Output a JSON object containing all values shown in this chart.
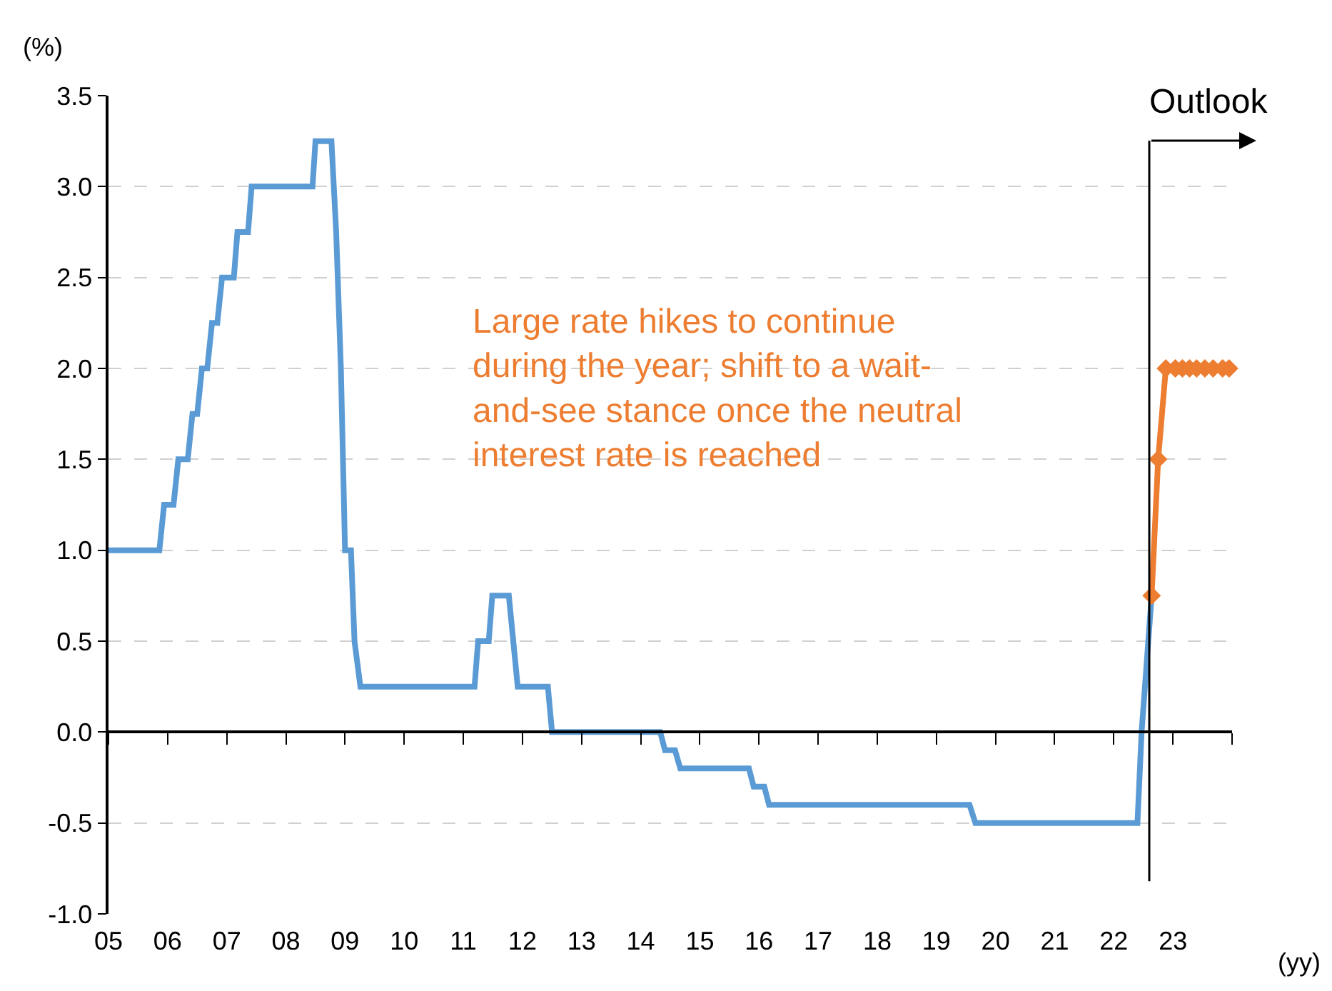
{
  "chart_data": {
    "type": "line",
    "xlabel": "(yy)",
    "ylabel": "(%)",
    "xlim": [
      2005,
      2024
    ],
    "xticks": [
      {
        "value": 2005,
        "label": "05"
      },
      {
        "value": 2006,
        "label": "06"
      },
      {
        "value": 2007,
        "label": "07"
      },
      {
        "value": 2008,
        "label": "08"
      },
      {
        "value": 2009,
        "label": "09"
      },
      {
        "value": 2010,
        "label": "10"
      },
      {
        "value": 2011,
        "label": "11"
      },
      {
        "value": 2012,
        "label": "12"
      },
      {
        "value": 2013,
        "label": "13"
      },
      {
        "value": 2014,
        "label": "14"
      },
      {
        "value": 2015,
        "label": "15"
      },
      {
        "value": 2016,
        "label": "16"
      },
      {
        "value": 2017,
        "label": "17"
      },
      {
        "value": 2018,
        "label": "18"
      },
      {
        "value": 2019,
        "label": "19"
      },
      {
        "value": 2020,
        "label": "20"
      },
      {
        "value": 2021,
        "label": "21"
      },
      {
        "value": 2022,
        "label": "22"
      },
      {
        "value": 2023,
        "label": "23"
      },
      {
        "value": 2024,
        "label": null
      }
    ],
    "ylim": [
      -1.0,
      3.5
    ],
    "yticks": [
      {
        "value": -1.0,
        "label": "-1.0"
      },
      {
        "value": -0.5,
        "label": "-0.5"
      },
      {
        "value": 0.0,
        "label": "0.0"
      },
      {
        "value": 0.5,
        "label": "0.5"
      },
      {
        "value": 1.0,
        "label": "1.0"
      },
      {
        "value": 1.5,
        "label": "1.5"
      },
      {
        "value": 2.0,
        "label": "2.0"
      },
      {
        "value": 2.5,
        "label": "2.5"
      },
      {
        "value": 3.0,
        "label": "3.0"
      },
      {
        "value": 3.5,
        "label": "3.5"
      }
    ],
    "grid": "y",
    "series": [
      {
        "color": "#5b9bd5",
        "marker": "none",
        "x": [
          2005.0,
          2005.86,
          2005.94,
          2006.1,
          2006.18,
          2006.34,
          2006.42,
          2006.5,
          2006.58,
          2006.67,
          2006.75,
          2006.84,
          2006.92,
          2007.12,
          2007.18,
          2007.36,
          2007.42,
          2008.45,
          2008.5,
          2008.77,
          2008.85,
          2008.93,
          2009.0,
          2009.1,
          2009.16,
          2009.26,
          2011.19,
          2011.25,
          2011.43,
          2011.49,
          2011.77,
          2011.92,
          2012.43,
          2012.5,
          2014.33,
          2014.41,
          2014.58,
          2014.67,
          2015.83,
          2015.91,
          2016.09,
          2016.17,
          2019.56,
          2019.66,
          2022.4,
          2022.47,
          2022.64
        ],
        "values": [
          1.0,
          1.0,
          1.25,
          1.25,
          1.5,
          1.5,
          1.75,
          1.75,
          2.0,
          2.0,
          2.25,
          2.25,
          2.5,
          2.5,
          2.75,
          2.75,
          3.0,
          3.0,
          3.25,
          3.25,
          2.75,
          2.0,
          1.0,
          1.0,
          0.5,
          0.25,
          0.25,
          0.5,
          0.5,
          0.75,
          0.75,
          0.25,
          0.25,
          0.0,
          0.0,
          -0.1,
          -0.1,
          -0.2,
          -0.2,
          -0.3,
          -0.3,
          -0.4,
          -0.4,
          -0.5,
          -0.5,
          0.0,
          0.75
        ]
      },
      {
        "color": "#ed7d31",
        "marker": "diamond",
        "x": [
          2022.64,
          2022.75,
          2022.88,
          2023.04,
          2023.16,
          2023.28,
          2023.4,
          2023.54,
          2023.68,
          2023.84,
          2023.95
        ],
        "values": [
          0.75,
          1.5,
          2.0,
          2.0,
          2.0,
          2.0,
          2.0,
          2.0,
          2.0,
          2.0,
          2.0
        ]
      }
    ],
    "ref_lines": [
      {
        "axis": "x",
        "value": 2022.6,
        "label": "Outlook",
        "color": "#000000",
        "line_style": "solid"
      }
    ],
    "annotations": [
      "Large rate hikes to continue during the year; shift to a wait-and-see stance once the neutral interest rate is reached"
    ]
  }
}
